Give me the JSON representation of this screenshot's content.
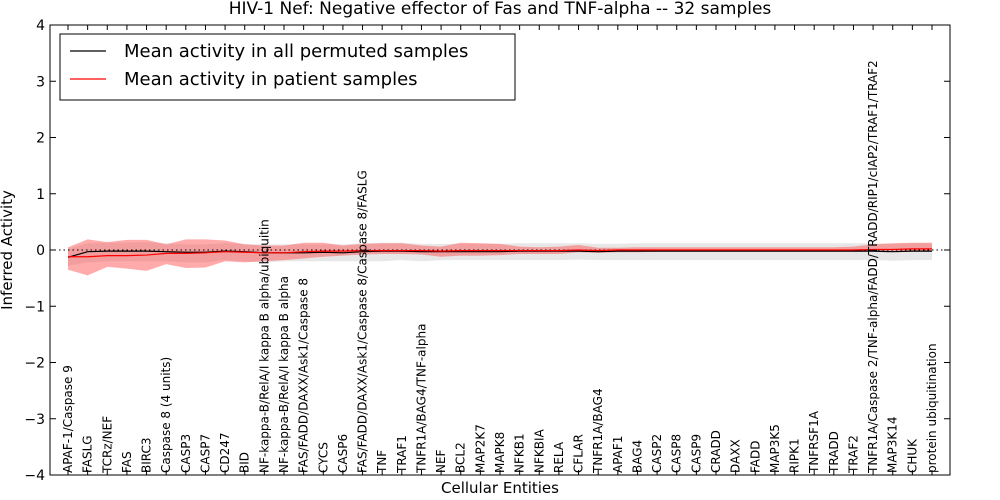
{
  "chart_data": {
    "type": "line",
    "title": "HIV-1 Nef: Negative effector of Fas and TNF-alpha -- 32 samples",
    "xlabel": "Cellular Entities",
    "ylabel": "Inferred Activity",
    "ylim": [
      -4,
      4
    ],
    "yticks": [
      -4,
      -3,
      -2,
      -1,
      0,
      1,
      2,
      3,
      4
    ],
    "ytick_labels": [
      "−4",
      "−3",
      "−2",
      "−1",
      "0",
      "1",
      "2",
      "3",
      "4"
    ],
    "grid": false,
    "legend_position": "top-left",
    "categories": [
      "APAF-1/Caspase 9",
      "FASLG",
      "TCRz/NEF",
      "FAS",
      "BIRC3",
      "Caspase 8 (4 units)",
      "CASP3",
      "CASP7",
      "CD247",
      "BID",
      "NF-kappa-B/RelA/I kappa B alpha/ubiquitin",
      "NF-kappa-B/RelA/I kappa B alpha",
      "FAS/FADD/DAXX/Ask1/Caspase 8",
      "CYCS",
      "CASP6",
      "FAS/FADD/DAXX/Ask1/Caspase 8/Caspase 8/FASLG",
      "TNF",
      "TRAF1",
      "TNFR1A/BAG4/TNF-alpha",
      "NEF",
      "BCL2",
      "MAP2K7",
      "MAPK8",
      "NFKB1",
      "NFKBIA",
      "RELA",
      "CFLAR",
      "TNFR1A/BAG4",
      "APAF1",
      "BAG4",
      "CASP2",
      "CASP8",
      "CASP9",
      "CRADD",
      "DAXX",
      "FADD",
      "MAP3K5",
      "RIPK1",
      "TNFRSF1A",
      "TRADD",
      "TRAF2",
      "TNFR1A/Caspase 2/TNF-alpha/FADD/TRADD/RIP1/cIAP2/TRAF1/TRAF2",
      "MAP3K14",
      "CHUK",
      "protein ubiquitination"
    ],
    "series": [
      {
        "name": "Mean activity in all permuted samples",
        "color": "#000000",
        "values": [
          -0.13,
          -0.03,
          -0.02,
          -0.02,
          -0.02,
          -0.03,
          -0.04,
          -0.04,
          -0.02,
          -0.03,
          -0.05,
          -0.05,
          -0.05,
          -0.04,
          -0.05,
          -0.03,
          -0.02,
          -0.02,
          -0.03,
          -0.03,
          -0.03,
          -0.03,
          -0.03,
          -0.02,
          -0.02,
          -0.02,
          -0.02,
          -0.03,
          -0.02,
          -0.02,
          -0.02,
          -0.02,
          -0.02,
          -0.02,
          -0.02,
          -0.02,
          -0.02,
          -0.02,
          -0.02,
          -0.02,
          -0.02,
          -0.02,
          -0.03,
          -0.02,
          -0.02
        ],
        "band_low": [
          -0.28,
          -0.22,
          -0.2,
          -0.2,
          -0.2,
          -0.2,
          -0.22,
          -0.22,
          -0.18,
          -0.2,
          -0.22,
          -0.2,
          -0.2,
          -0.2,
          -0.2,
          -0.2,
          -0.2,
          -0.18,
          -0.2,
          -0.18,
          -0.18,
          -0.18,
          -0.18,
          -0.18,
          -0.18,
          -0.18,
          -0.17,
          -0.18,
          -0.18,
          -0.18,
          -0.18,
          -0.18,
          -0.18,
          -0.18,
          -0.18,
          -0.18,
          -0.18,
          -0.18,
          -0.18,
          -0.18,
          -0.18,
          -0.18,
          -0.19,
          -0.18,
          -0.18
        ],
        "band_high": [
          0.02,
          0.12,
          0.13,
          0.13,
          0.14,
          0.12,
          0.1,
          0.1,
          0.12,
          0.11,
          0.1,
          0.1,
          0.1,
          0.1,
          0.1,
          0.12,
          0.13,
          0.13,
          0.11,
          0.11,
          0.11,
          0.11,
          0.11,
          0.12,
          0.12,
          0.12,
          0.12,
          0.11,
          0.11,
          0.12,
          0.12,
          0.12,
          0.12,
          0.12,
          0.12,
          0.12,
          0.12,
          0.12,
          0.12,
          0.12,
          0.12,
          0.12,
          0.11,
          0.12,
          0.12
        ]
      },
      {
        "name": "Mean activity in patient samples",
        "color": "#ff0000",
        "values": [
          -0.12,
          -0.12,
          -0.1,
          -0.1,
          -0.09,
          -0.06,
          -0.06,
          -0.05,
          -0.03,
          -0.04,
          -0.05,
          -0.05,
          -0.03,
          -0.02,
          -0.02,
          -0.01,
          -0.01,
          -0.01,
          -0.01,
          -0.02,
          -0.01,
          -0.01,
          -0.01,
          -0.01,
          -0.01,
          -0.01,
          0.0,
          -0.01,
          0.0,
          0.0,
          0.0,
          0.0,
          0.0,
          0.0,
          0.0,
          0.0,
          0.0,
          0.0,
          0.0,
          0.0,
          0.0,
          0.01,
          0.01,
          0.02,
          0.02
        ],
        "band_low": [
          -0.35,
          -0.45,
          -0.3,
          -0.33,
          -0.37,
          -0.25,
          -0.32,
          -0.31,
          -0.2,
          -0.22,
          -0.2,
          -0.18,
          -0.15,
          -0.12,
          -0.1,
          -0.08,
          -0.07,
          -0.07,
          -0.08,
          -0.12,
          -0.1,
          -0.1,
          -0.09,
          -0.07,
          -0.07,
          -0.07,
          -0.04,
          -0.05,
          -0.04,
          -0.04,
          -0.03,
          -0.03,
          -0.03,
          -0.03,
          -0.03,
          -0.03,
          -0.03,
          -0.03,
          -0.03,
          -0.03,
          -0.03,
          -0.03,
          -0.03,
          -0.03,
          -0.03
        ],
        "band_high": [
          0.05,
          0.19,
          0.14,
          0.18,
          0.18,
          0.1,
          0.19,
          0.19,
          0.17,
          0.1,
          0.08,
          0.08,
          0.13,
          0.13,
          0.08,
          0.11,
          0.12,
          0.12,
          0.08,
          0.06,
          0.13,
          0.12,
          0.11,
          0.06,
          0.05,
          0.06,
          0.09,
          0.04,
          0.04,
          0.05,
          0.05,
          0.05,
          0.05,
          0.05,
          0.05,
          0.05,
          0.05,
          0.05,
          0.05,
          0.05,
          0.06,
          0.1,
          0.12,
          0.13,
          0.13
        ]
      }
    ],
    "reference_line": {
      "y": 0,
      "style": "dotted",
      "color": "#000000"
    }
  }
}
